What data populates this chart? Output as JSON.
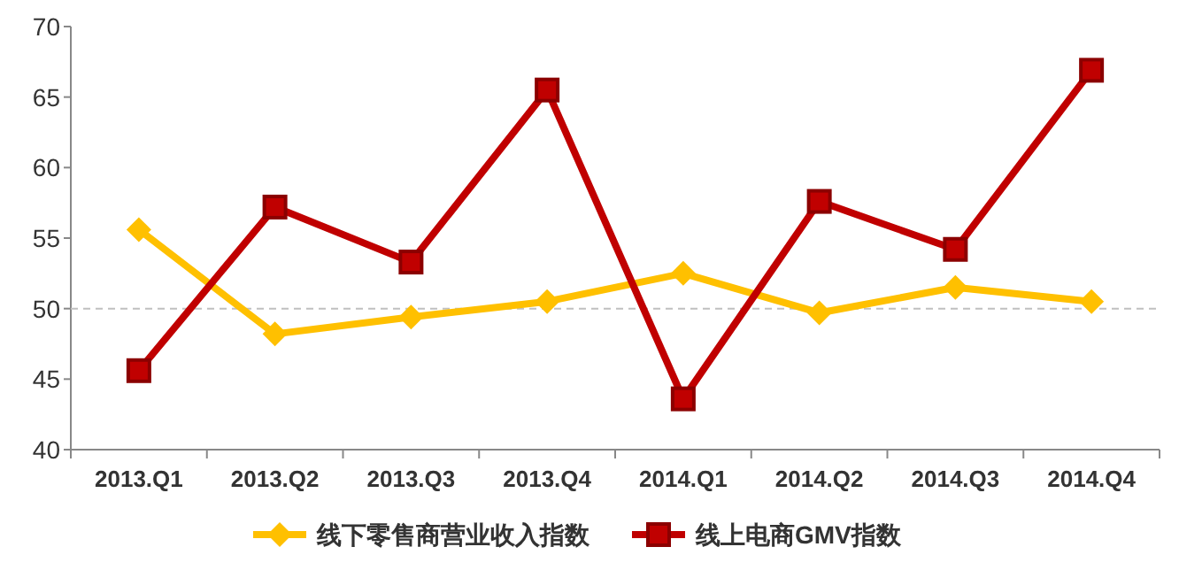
{
  "chart_data": {
    "type": "line",
    "categories": [
      "2013.Q1",
      "2013.Q2",
      "2013.Q3",
      "2013.Q4",
      "2014.Q1",
      "2014.Q2",
      "2014.Q3",
      "2014.Q4"
    ],
    "series": [
      {
        "name": "线下零售商营业收入指数",
        "color": "#ffc000",
        "marker": "diamond",
        "values": [
          55.6,
          48.2,
          49.4,
          50.5,
          52.5,
          49.7,
          51.5,
          50.5
        ]
      },
      {
        "name": "线上电商GMV指数",
        "color": "#c00000",
        "marker": "square",
        "values": [
          45.6,
          57.2,
          53.3,
          65.5,
          43.6,
          57.6,
          54.2,
          66.9
        ]
      }
    ],
    "ylim": [
      40,
      70
    ],
    "yticks": [
      40,
      45,
      50,
      55,
      60,
      65,
      70
    ],
    "grid": false,
    "legend": "bottom",
    "line_style": "solid",
    "ref_lines": [
      {
        "axis": "y",
        "value": 50,
        "color": "#c0c0c0",
        "line_style": "dashed"
      }
    ]
  }
}
